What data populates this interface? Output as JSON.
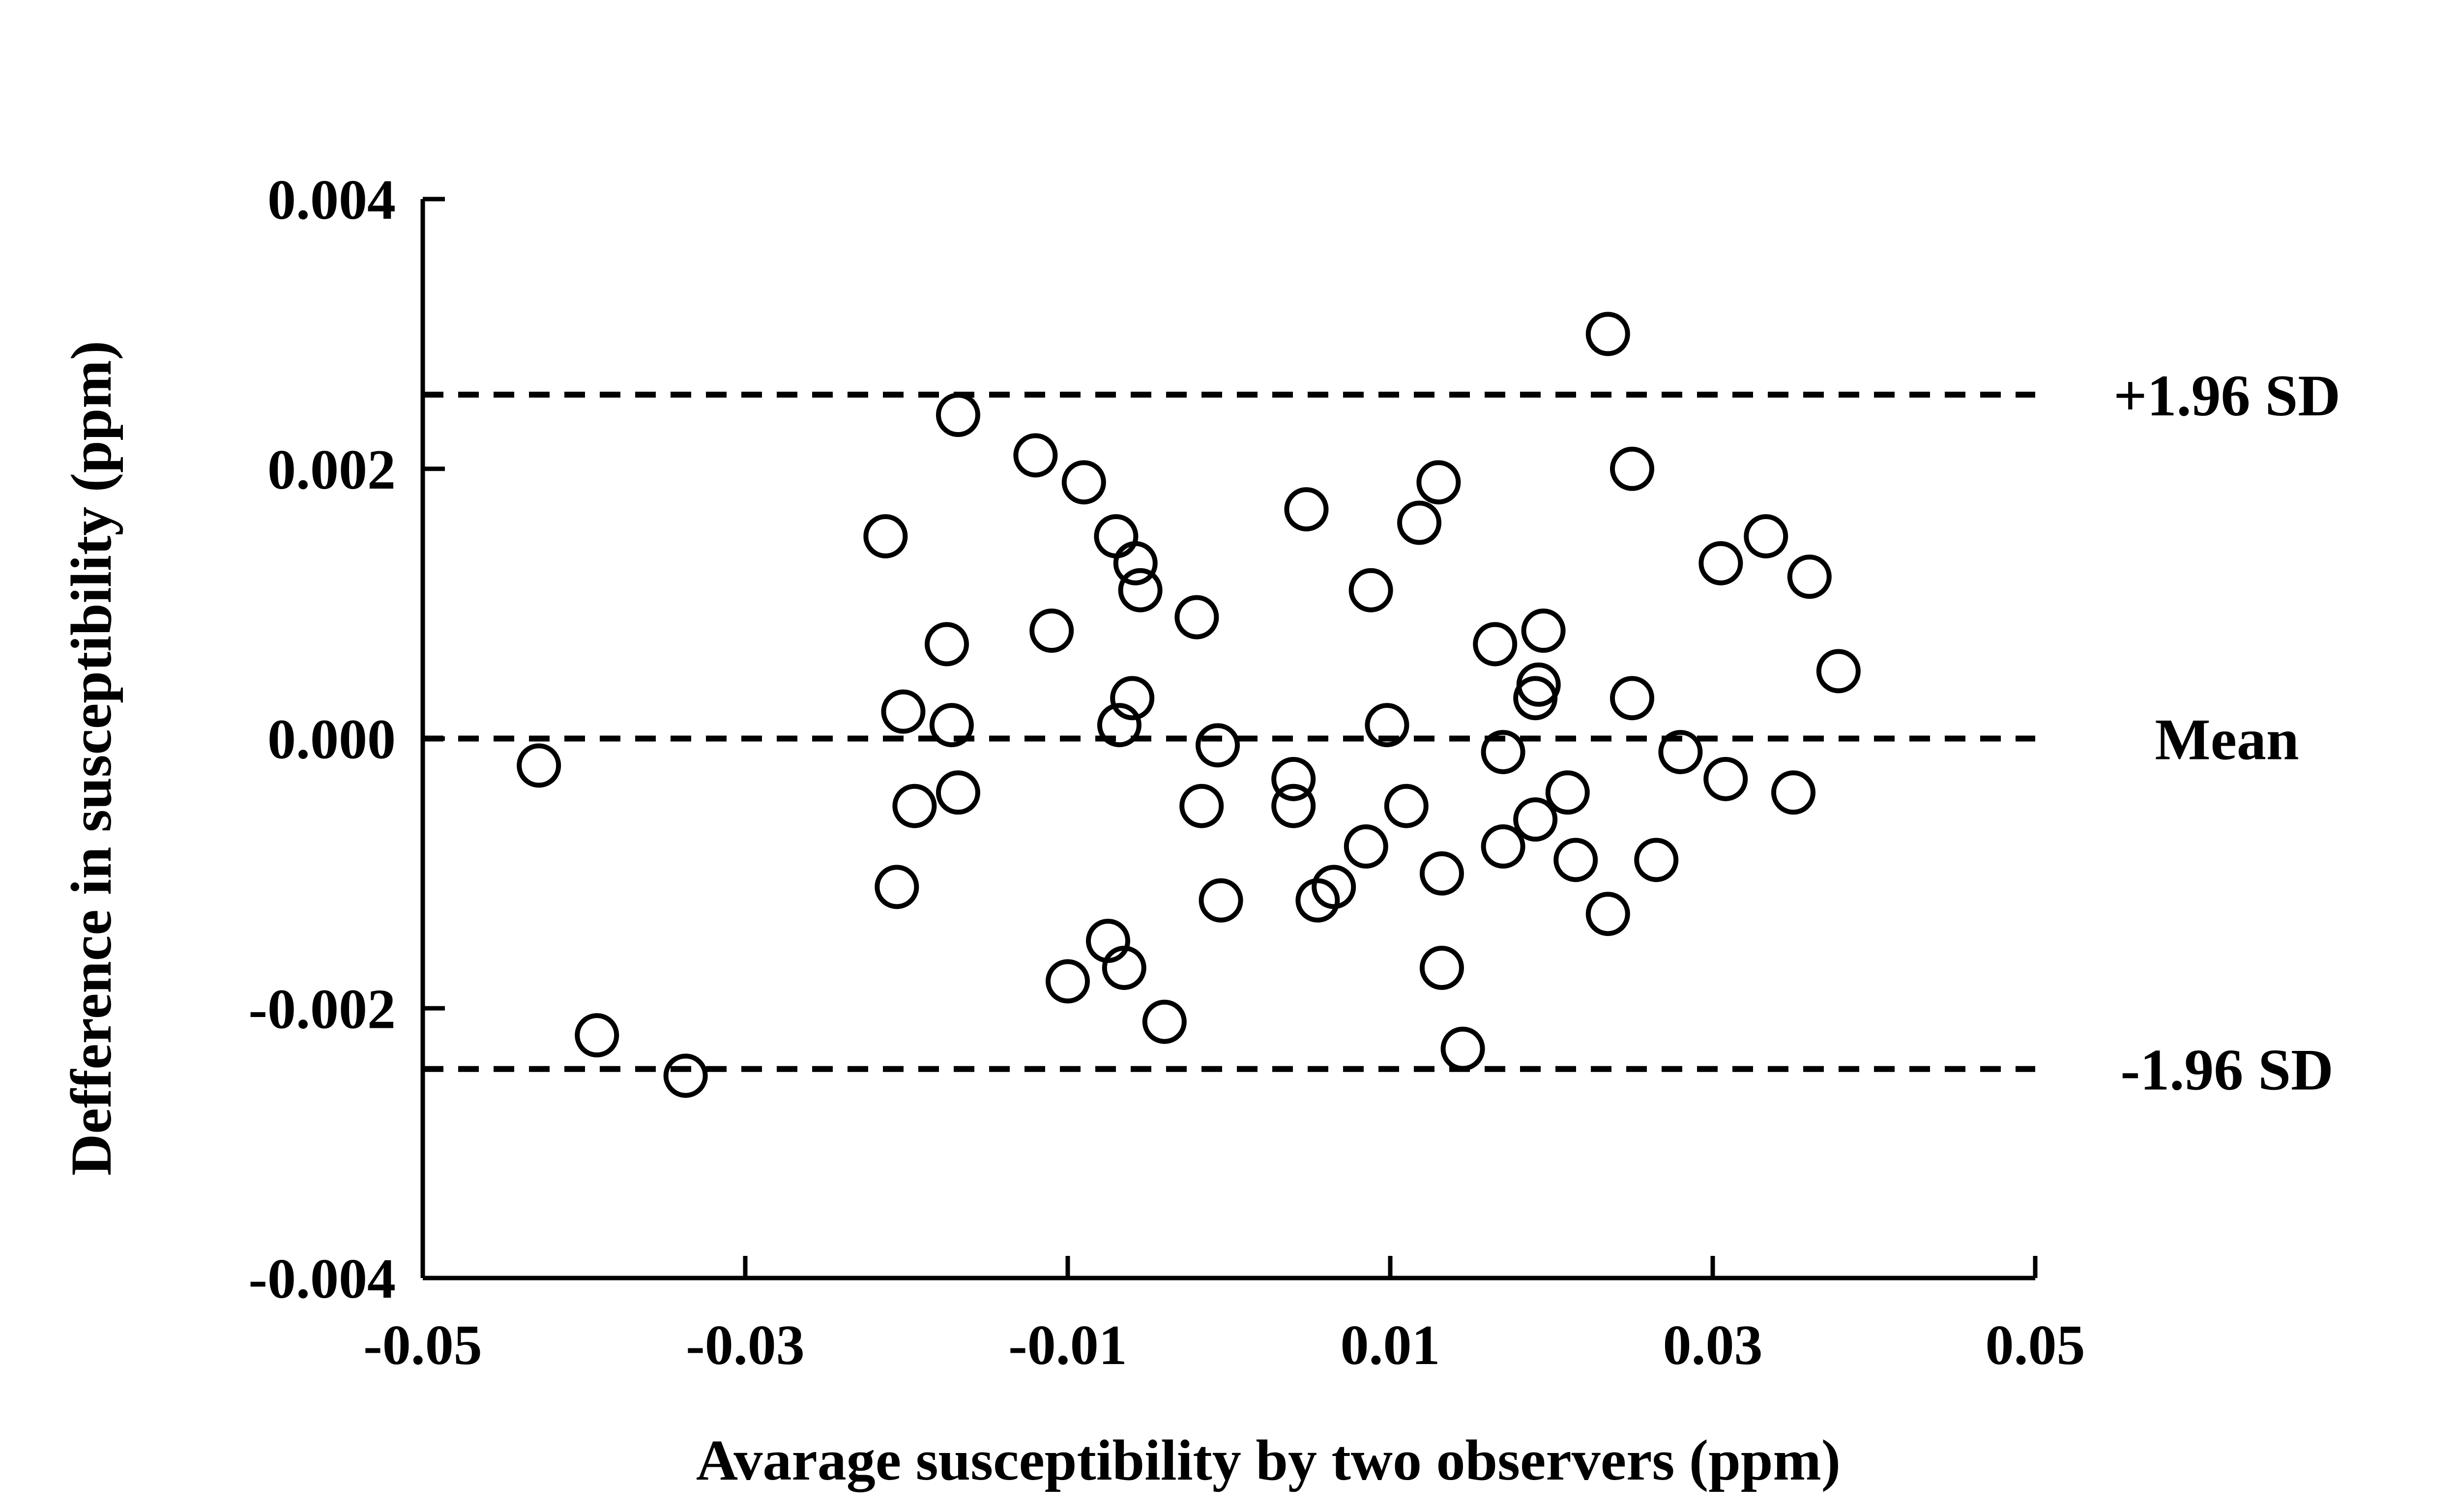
{
  "chart_data": {
    "type": "scatter",
    "title": "",
    "xlabel": "Avarage susceptibility by two observers (ppm)",
    "ylabel": "Defference in susceptibility (ppm)",
    "xlim": [
      -0.05,
      0.05
    ],
    "ylim": [
      -0.004,
      0.004
    ],
    "x_ticks": [
      -0.05,
      -0.03,
      -0.01,
      0.01,
      0.03,
      0.05
    ],
    "x_tick_labels": [
      "-0.05",
      "-0.03",
      "-0.01",
      "0.01",
      "0.03",
      "0.05"
    ],
    "y_ticks": [
      -0.004,
      -0.002,
      0.0,
      0.002,
      0.004
    ],
    "y_tick_labels": [
      "-0.004",
      "-0.002",
      "0.000",
      "0.002",
      "0.004"
    ],
    "grid": false,
    "reference_lines": [
      {
        "label": "+1.96 SD",
        "y": 0.00255
      },
      {
        "label": "Mean",
        "y": 0.0
      },
      {
        "label": "-1.96 SD",
        "y": -0.00245
      }
    ],
    "points": [
      {
        "x": -0.0428,
        "y": -0.0002
      },
      {
        "x": -0.0392,
        "y": -0.0022
      },
      {
        "x": -0.0337,
        "y": -0.0025
      },
      {
        "x": -0.0213,
        "y": 0.0015
      },
      {
        "x": -0.0206,
        "y": -0.0011
      },
      {
        "x": -0.0202,
        "y": 0.0002
      },
      {
        "x": -0.0195,
        "y": -0.0005
      },
      {
        "x": -0.0175,
        "y": 0.0007
      },
      {
        "x": -0.0172,
        "y": 0.0001
      },
      {
        "x": -0.0168,
        "y": -0.0004
      },
      {
        "x": -0.0168,
        "y": 0.0024
      },
      {
        "x": -0.012,
        "y": 0.0021
      },
      {
        "x": -0.011,
        "y": 0.0008
      },
      {
        "x": -0.01,
        "y": -0.0018
      },
      {
        "x": -0.009,
        "y": 0.0019
      },
      {
        "x": -0.0075,
        "y": -0.0015
      },
      {
        "x": -0.007,
        "y": 0.0015
      },
      {
        "x": -0.0068,
        "y": 0.0001
      },
      {
        "x": -0.0065,
        "y": -0.0017
      },
      {
        "x": -0.006,
        "y": 0.0003
      },
      {
        "x": -0.0058,
        "y": 0.0013
      },
      {
        "x": -0.0055,
        "y": 0.0011
      },
      {
        "x": -0.004,
        "y": -0.0021
      },
      {
        "x": -0.002,
        "y": 0.0009
      },
      {
        "x": -0.0017,
        "y": -0.0005
      },
      {
        "x": -0.0007,
        "y": -5e-05
      },
      {
        "x": -0.0005,
        "y": -0.0012
      },
      {
        "x": 0.004,
        "y": -0.0003
      },
      {
        "x": 0.004,
        "y": -0.0005
      },
      {
        "x": 0.0048,
        "y": 0.0017
      },
      {
        "x": 0.0055,
        "y": -0.0012
      },
      {
        "x": 0.0065,
        "y": -0.0011
      },
      {
        "x": 0.0085,
        "y": -0.0008
      },
      {
        "x": 0.0088,
        "y": 0.0011
      },
      {
        "x": 0.0098,
        "y": 0.0001
      },
      {
        "x": 0.011,
        "y": -0.0005
      },
      {
        "x": 0.0118,
        "y": 0.0016
      },
      {
        "x": 0.013,
        "y": 0.0019
      },
      {
        "x": 0.0132,
        "y": -0.0017
      },
      {
        "x": 0.0132,
        "y": -0.001
      },
      {
        "x": 0.0145,
        "y": -0.0023
      },
      {
        "x": 0.0165,
        "y": 0.0007
      },
      {
        "x": 0.017,
        "y": -0.0001
      },
      {
        "x": 0.017,
        "y": -0.0008
      },
      {
        "x": 0.019,
        "y": -0.0006
      },
      {
        "x": 0.019,
        "y": 0.0003
      },
      {
        "x": 0.0192,
        "y": 0.0004
      },
      {
        "x": 0.0195,
        "y": 0.0008
      },
      {
        "x": 0.021,
        "y": -0.0004
      },
      {
        "x": 0.0215,
        "y": -0.0009
      },
      {
        "x": 0.0235,
        "y": -0.0013
      },
      {
        "x": 0.0235,
        "y": 0.003
      },
      {
        "x": 0.025,
        "y": 0.0003
      },
      {
        "x": 0.025,
        "y": 0.002
      },
      {
        "x": 0.0265,
        "y": -0.0009
      },
      {
        "x": 0.028,
        "y": -0.0001
      },
      {
        "x": 0.0305,
        "y": 0.0013
      },
      {
        "x": 0.0308,
        "y": -0.0003
      },
      {
        "x": 0.0333,
        "y": 0.0015
      },
      {
        "x": 0.035,
        "y": -0.0004
      },
      {
        "x": 0.036,
        "y": 0.0012
      },
      {
        "x": 0.0378,
        "y": 0.0005
      }
    ]
  }
}
